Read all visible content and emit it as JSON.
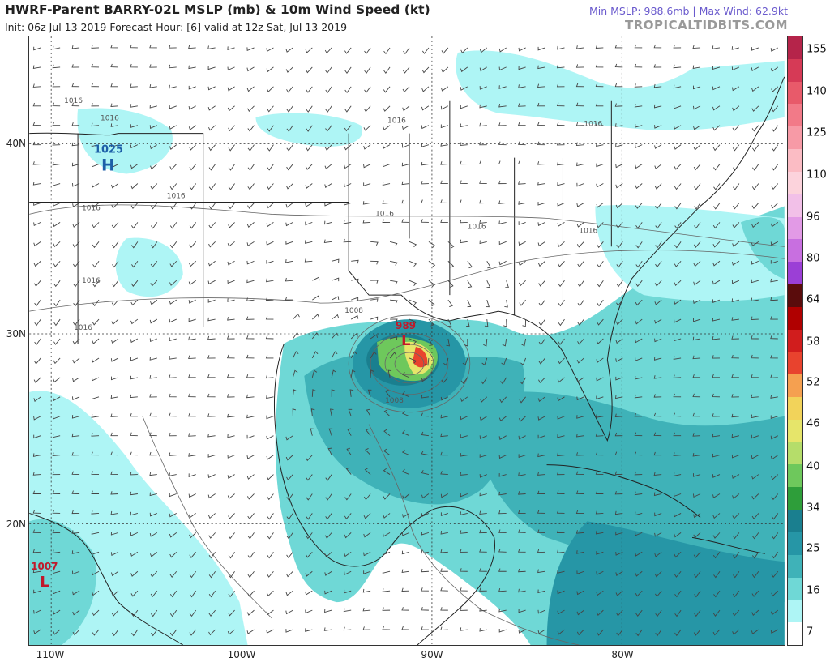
{
  "header": {
    "title": "HWRF-Parent BARRY-02L MSLP (mb) & 10m Wind Speed (kt)",
    "subtitle": "Init: 06z Jul 13 2019   Forecast Hour: [6]   valid at 12z Sat, Jul 13 2019",
    "min_max": "Min MSLP: 988.6mb | Max Wind: 62.9kt",
    "brand": "TROPICALTIDBITS.COM"
  },
  "colorbar": {
    "labels": [
      "155",
      "140",
      "125",
      "110",
      "96",
      "80",
      "64",
      "58",
      "52",
      "46",
      "40",
      "34",
      "25",
      "16",
      "7"
    ],
    "bands": [
      {
        "color": "#b5244a"
      },
      {
        "color": "#d63a56"
      },
      {
        "color": "#e85a6a"
      },
      {
        "color": "#f27a88"
      },
      {
        "color": "#f79aa6"
      },
      {
        "color": "#fbbcc4"
      },
      {
        "color": "#fcd3dc"
      },
      {
        "color": "#f2c0e8"
      },
      {
        "color": "#e29ae6"
      },
      {
        "color": "#c86fe0"
      },
      {
        "color": "#9b3fd6"
      },
      {
        "color": "#5a0c0c"
      },
      {
        "color": "#b00000"
      },
      {
        "color": "#d11d1d"
      },
      {
        "color": "#e8432e"
      },
      {
        "color": "#f5a050"
      },
      {
        "color": "#f2d35a"
      },
      {
        "color": "#e6e56a"
      },
      {
        "color": "#b5dd6a"
      },
      {
        "color": "#6ec85c"
      },
      {
        "color": "#2e9e3a"
      },
      {
        "color": "#1a7f8f"
      },
      {
        "color": "#2696a6"
      },
      {
        "color": "#3fb2b8"
      },
      {
        "color": "#6fd8d6"
      },
      {
        "color": "#aef5f5"
      },
      {
        "color": "#ffffff"
      }
    ]
  },
  "axes": {
    "lat_labels": [
      "40N",
      "30N",
      "20N"
    ],
    "lon_labels": [
      "110W",
      "100W",
      "90W",
      "80W"
    ]
  },
  "pressure_labels": [
    "1016",
    "1016",
    "1016",
    "1016",
    "1016",
    "1016",
    "1016",
    "1016",
    "1016",
    "1016",
    "1016",
    "1008",
    "1008"
  ],
  "pressure_centers": [
    {
      "value": "1025",
      "letter": "H",
      "color": "#1d5fa8"
    },
    {
      "value": "989",
      "letter": "L",
      "color": "#c0192a"
    },
    {
      "value": "1007",
      "letter": "L",
      "color": "#c0192a"
    }
  ]
}
